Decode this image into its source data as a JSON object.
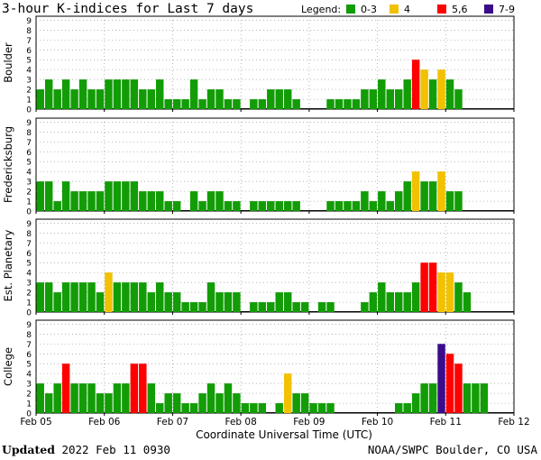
{
  "chart_data": {
    "type": "bar",
    "title": "3-hour K-indices for Last 7 days",
    "legend": {
      "label": "Legend:",
      "placement": "top-right",
      "entries": [
        {
          "name": "0-3",
          "color": "#129c06"
        },
        {
          "name": "4",
          "color": "#f2c100"
        },
        {
          "name": "5,6",
          "color": "#ff0000"
        },
        {
          "name": "7-9",
          "color": "#3a0c8c"
        }
      ]
    },
    "x_ticks": [
      "Feb 05",
      "Feb 06",
      "Feb 07",
      "Feb 08",
      "Feb 09",
      "Feb 10",
      "Feb 11",
      "Feb 12"
    ],
    "xlabel": "Coordinate Universal Time (UTC)",
    "y_ticks": [
      "0",
      "1",
      "2",
      "3",
      "4",
      "5",
      "6",
      "7",
      "8",
      "9"
    ],
    "ylim": [
      0,
      9
    ],
    "bins_per_day": 8,
    "panels": [
      {
        "name": "Boulder",
        "values": [
          2,
          3,
          2,
          3,
          2,
          3,
          2,
          2,
          3,
          3,
          3,
          3,
          2,
          2,
          3,
          1,
          1,
          1,
          3,
          1,
          2,
          2,
          1,
          1,
          0,
          1,
          1,
          2,
          2,
          2,
          1,
          0,
          0,
          0,
          1,
          1,
          1,
          1,
          2,
          2,
          3,
          2,
          2,
          3,
          5,
          4,
          3,
          4,
          3,
          2,
          0,
          0,
          0,
          0,
          0,
          0
        ]
      },
      {
        "name": "Fredericksburg",
        "values": [
          3,
          3,
          1,
          3,
          2,
          2,
          2,
          2,
          3,
          3,
          3,
          3,
          2,
          2,
          2,
          1,
          1,
          0,
          2,
          1,
          2,
          2,
          1,
          1,
          0,
          1,
          1,
          1,
          1,
          1,
          1,
          0,
          0,
          0,
          1,
          1,
          1,
          1,
          2,
          1,
          2,
          1,
          2,
          3,
          4,
          3,
          3,
          4,
          2,
          2,
          0,
          0,
          0,
          0,
          0,
          0
        ]
      },
      {
        "name": "Est. Planetary",
        "values": [
          3,
          3,
          2,
          3,
          3,
          3,
          3,
          2,
          4,
          3,
          3,
          3,
          3,
          2,
          3,
          2,
          2,
          1,
          1,
          1,
          3,
          2,
          2,
          2,
          0,
          1,
          1,
          1,
          2,
          2,
          1,
          1,
          0,
          1,
          1,
          0,
          0,
          0,
          1,
          2,
          3,
          2,
          2,
          2,
          3,
          5,
          5,
          4,
          4,
          3,
          2,
          0,
          0,
          0,
          0,
          0
        ]
      },
      {
        "name": "College",
        "values": [
          3,
          2,
          3,
          5,
          3,
          3,
          3,
          2,
          2,
          3,
          3,
          5,
          5,
          3,
          1,
          2,
          2,
          1,
          1,
          2,
          3,
          2,
          3,
          2,
          1,
          1,
          1,
          0,
          1,
          4,
          2,
          2,
          1,
          1,
          1,
          0,
          0,
          0,
          0,
          0,
          0,
          0,
          1,
          1,
          2,
          3,
          3,
          7,
          6,
          5,
          3,
          3,
          3,
          0,
          0,
          0
        ]
      }
    ]
  },
  "footer": {
    "updated_label": "Updated",
    "updated_value": "2022 Feb 11 0930",
    "source": "NOAA/SWPC Boulder, CO USA"
  }
}
